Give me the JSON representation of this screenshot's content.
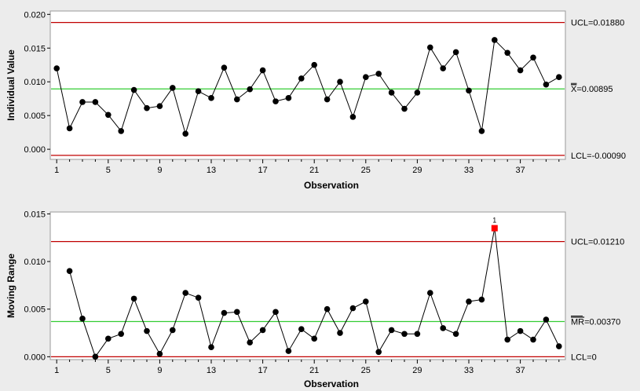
{
  "chart_data": [
    {
      "type": "line",
      "chart_kind": "Individuals control chart",
      "xlabel": "Observation",
      "ylabel": "Individual Value",
      "xticks": [
        1,
        5,
        9,
        13,
        17,
        21,
        25,
        29,
        33,
        37
      ],
      "yticks": [
        "0.000",
        "0.005",
        "0.010",
        "0.015",
        "0.020"
      ],
      "ylim": [
        -0.0015,
        0.0205
      ],
      "xlim": [
        0.5,
        40.5
      ],
      "center_label_bar": "X",
      "center_label_rest": "=0.00895",
      "limits": [
        {
          "label": "UCL=0.01880",
          "value": 0.0188,
          "color": "#c00000"
        },
        {
          "label": "X=0.00895",
          "value": 0.00895,
          "color": "#33cc33"
        },
        {
          "label": "LCL=-0.00090",
          "value": -0.0009,
          "color": "#c00000"
        }
      ],
      "series": [
        {
          "x_start": 1,
          "values": [
            0.012,
            0.0031,
            0.007,
            0.007,
            0.0051,
            0.0027,
            0.0088,
            0.0061,
            0.0064,
            0.0091,
            0.0023,
            0.0086,
            0.0076,
            0.0121,
            0.0074,
            0.0089,
            0.0117,
            0.0071,
            0.0076,
            0.0105,
            0.0125,
            0.0074,
            0.01,
            0.0048,
            0.0107,
            0.0112,
            0.0084,
            0.006,
            0.0084,
            0.0151,
            0.012,
            0.0144,
            0.0087,
            0.0027,
            0.0162,
            0.0143,
            0.0117,
            0.0136,
            0.0096,
            0.0107
          ],
          "color": "#000000"
        }
      ]
    },
    {
      "type": "line",
      "chart_kind": "Moving range chart",
      "xlabel": "Observation",
      "ylabel": "Moving Range",
      "xticks": [
        1,
        5,
        9,
        13,
        17,
        21,
        25,
        29,
        33,
        37
      ],
      "yticks": [
        "0.000",
        "0.005",
        "0.010",
        "0.015"
      ],
      "ylim": [
        -0.0003,
        0.0152
      ],
      "xlim": [
        0.5,
        40.5
      ],
      "center_label_bar": "MR",
      "center_label_rest": "=0.00370",
      "limits": [
        {
          "label": "UCL=0.01210",
          "value": 0.0121,
          "color": "#c00000"
        },
        {
          "label": "MR=0.00370",
          "value": 0.0037,
          "color": "#33cc33"
        },
        {
          "label": "LCL=0",
          "value": 0,
          "color": "#c00000"
        }
      ],
      "series": [
        {
          "x_start": 2,
          "values": [
            0.009,
            0.004,
            0.0,
            0.0019,
            0.0024,
            0.0061,
            0.0027,
            0.0003,
            0.0028,
            0.0067,
            0.0062,
            0.001,
            0.0046,
            0.0047,
            0.0015,
            0.0028,
            0.0047,
            0.0006,
            0.0029,
            0.0019,
            0.005,
            0.0025,
            0.0051,
            0.0058,
            0.0005,
            0.0028,
            0.0024,
            0.0024,
            0.0067,
            0.003,
            0.0024,
            0.0058,
            0.006,
            0.0135,
            0.0018,
            0.0027,
            0.0018,
            0.0039,
            0.0011
          ],
          "color": "#000000"
        }
      ],
      "out_of_control": [
        {
          "x": 35,
          "label": "1",
          "color": "#ff0000"
        }
      ]
    }
  ]
}
